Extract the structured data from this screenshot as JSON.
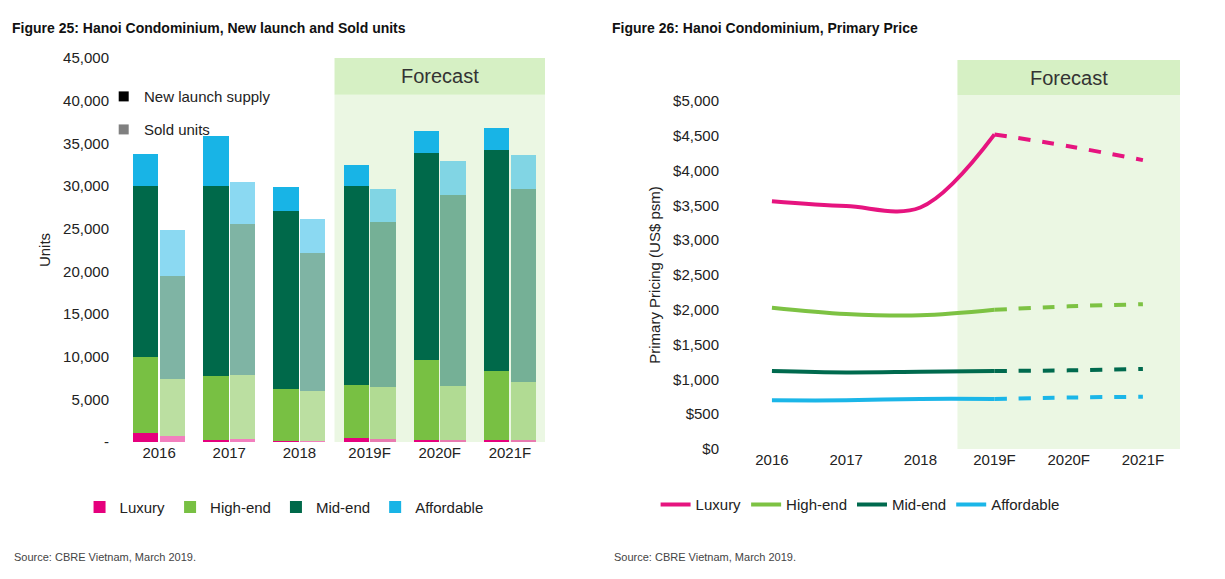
{
  "chart_data": [
    {
      "type": "bar",
      "stacked": true,
      "grid": false,
      "legend": "bottom",
      "title": "Figure 25: Hanoi Condominium, New launch and Sold units",
      "y_label": "Units",
      "categories": [
        "2016",
        "2017",
        "2018",
        "2019F",
        "2020F",
        "2021F"
      ],
      "ylim": [
        0,
        45000
      ],
      "yticks": [
        {
          "value": 0,
          "label": "-"
        },
        {
          "value": 5000,
          "label": "5,000"
        },
        {
          "value": 10000,
          "label": "10,000"
        },
        {
          "value": 15000,
          "label": "15,000"
        },
        {
          "value": 20000,
          "label": "20,000"
        },
        {
          "value": 25000,
          "label": "25,000"
        },
        {
          "value": 30000,
          "label": "30,000"
        },
        {
          "value": 35000,
          "label": "35,000"
        },
        {
          "value": 40000,
          "label": "40,000"
        },
        {
          "value": 45000,
          "label": "45,000"
        }
      ],
      "groups": [
        {
          "name": "New launch supply",
          "color": "#000000",
          "series": [
            {
              "name": "Luxury",
              "color": "#e5007d",
              "values": [
                1000,
                200,
                100,
                500,
                200,
                200
              ]
            },
            {
              "name": "High-end",
              "color": "#78c043",
              "values": [
                9000,
                7500,
                6100,
                6200,
                9400,
                8100
              ]
            },
            {
              "name": "Mid-end",
              "color": "#00694a",
              "values": [
                20000,
                22300,
                20900,
                23300,
                24300,
                25900
              ]
            },
            {
              "name": "Affordable",
              "color": "#18b4e6",
              "values": [
                3800,
                5900,
                2800,
                2500,
                2500,
                2600
              ]
            }
          ]
        },
        {
          "name": "Sold units",
          "color": "#808080",
          "series": [
            {
              "name": "Luxury",
              "color": "#e5007d",
              "values": [
                700,
                300,
                100,
                300,
                200,
                200
              ]
            },
            {
              "name": "High-end",
              "color": "#78c043",
              "values": [
                6700,
                7500,
                5900,
                6100,
                6400,
                6800
              ]
            },
            {
              "name": "Mid-end",
              "color": "#00694a",
              "values": [
                12000,
                17800,
                16200,
                19400,
                22300,
                22600
              ]
            },
            {
              "name": "Affordable",
              "color": "#18b4e6",
              "values": [
                5400,
                4900,
                3900,
                3900,
                4000,
                4000
              ]
            }
          ]
        }
      ],
      "annotations": [
        {
          "text": "Forecast",
          "start": "2019F",
          "end": "2021F"
        },
        {
          "text": "Source: CBRE Vietnam, March 2019."
        }
      ]
    },
    {
      "type": "line",
      "grid": false,
      "legend": "bottom",
      "title": "Figure 26: Hanoi Condominium, Primary Price",
      "y_label": "Primary Pricing (US$ psm)",
      "categories": [
        "2016",
        "2017",
        "2018",
        "2019F",
        "2020F",
        "2021F"
      ],
      "ylim": [
        0,
        5000
      ],
      "yticks": [
        {
          "value": 0,
          "label": "$0"
        },
        {
          "value": 500,
          "label": "$500"
        },
        {
          "value": 1000,
          "label": "$1,000"
        },
        {
          "value": 1500,
          "label": "$1,500"
        },
        {
          "value": 2000,
          "label": "$2,000"
        },
        {
          "value": 2500,
          "label": "$2,500"
        },
        {
          "value": 3000,
          "label": "$3,000"
        },
        {
          "value": 3500,
          "label": "$3,500"
        },
        {
          "value": 4000,
          "label": "$4,000"
        },
        {
          "value": 4500,
          "label": "$4,500"
        },
        {
          "value": 5000,
          "label": "$5,000"
        }
      ],
      "series": [
        {
          "name": "Luxury",
          "color": "#e6147f",
          "values": [
            3560,
            3490,
            3470,
            4520,
            4350,
            4150
          ]
        },
        {
          "name": "High-end",
          "color": "#7dc243",
          "values": [
            2030,
            1940,
            1920,
            2000,
            2050,
            2080
          ]
        },
        {
          "name": "Mid-end",
          "color": "#006a4e",
          "values": [
            1120,
            1100,
            1110,
            1120,
            1130,
            1150
          ]
        },
        {
          "name": "Affordable",
          "color": "#1bb6e8",
          "values": [
            700,
            700,
            720,
            720,
            740,
            750
          ]
        }
      ],
      "annotations": [
        {
          "text": "Forecast",
          "start": "2019F",
          "end": "2021F"
        },
        {
          "text": "Source: CBRE Vietnam, March 2019."
        }
      ]
    }
  ]
}
